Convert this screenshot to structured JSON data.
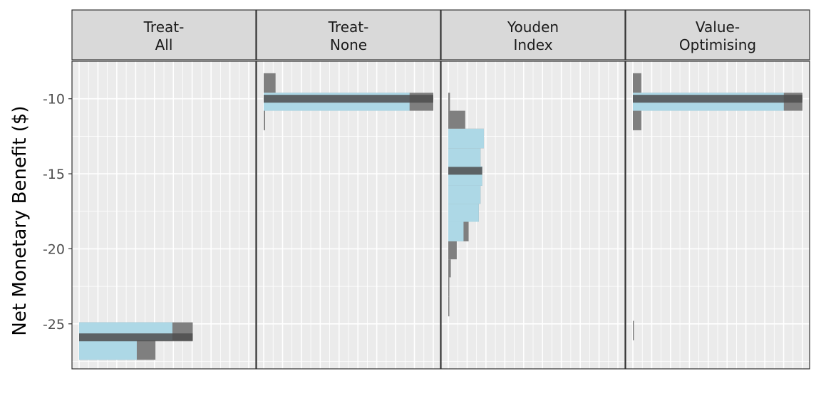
{
  "chart_data": {
    "type": "bar",
    "orientation": "horizontal",
    "ylabel": "Net Monetary Benefit ($)",
    "xlabel": "",
    "ylim": [
      -28,
      -7.5
    ],
    "xlim": [
      0,
      1
    ],
    "y_ticks": [
      -10,
      -15,
      -20,
      -25
    ],
    "y_tick_labels": [
      "-10",
      "-15",
      "-20",
      "-25"
    ],
    "grid": true,
    "legend": "none",
    "colors": {
      "panel_bg": "#ebebeb",
      "grid": "#ffffff",
      "strip_bg": "#d9d9d9",
      "strip_border": "#333333",
      "histogram": "#7f7f7f",
      "interval": "#add8e6",
      "median": "#4d4d4d",
      "tick_label": "#4d4d4d"
    },
    "panels": [
      {
        "strip": [
          "Treat-",
          "All"
        ],
        "hist": [
          {
            "y0": -24.9,
            "y1": -26.1,
            "value": 0.67
          },
          {
            "y0": -26.1,
            "y1": -27.4,
            "value": 0.45
          }
        ],
        "interval": [
          {
            "y0": -24.9,
            "y1": -26.1,
            "value": 0.55
          },
          {
            "y0": -26.1,
            "y1": -27.4,
            "value": 0.34
          }
        ],
        "median": {
          "y": -25.9,
          "value": 0.67
        }
      },
      {
        "strip": [
          "Treat-",
          "None"
        ],
        "hist": [
          {
            "y0": -8.3,
            "y1": -9.6,
            "value": 0.07
          },
          {
            "y0": -9.6,
            "y1": -10.8,
            "value": 1.0
          },
          {
            "y0": -10.8,
            "y1": -12.1,
            "value": 0.008
          }
        ],
        "interval": [
          {
            "y0": -9.6,
            "y1": -10.8,
            "value": 0.86
          }
        ],
        "median": {
          "y": -10.0,
          "value": 1.0
        }
      },
      {
        "strip": [
          "Youden",
          "Index"
        ],
        "hist": [
          {
            "y0": -9.6,
            "y1": -10.8,
            "value": 0.01
          },
          {
            "y0": -10.8,
            "y1": -12.0,
            "value": 0.1
          },
          {
            "y0": -12.0,
            "y1": -13.3,
            "value": 0.21
          },
          {
            "y0": -13.3,
            "y1": -14.5,
            "value": 0.19
          },
          {
            "y0": -14.5,
            "y1": -15.8,
            "value": 0.2
          },
          {
            "y0": -15.8,
            "y1": -17.0,
            "value": 0.19
          },
          {
            "y0": -17.0,
            "y1": -18.2,
            "value": 0.18
          },
          {
            "y0": -18.2,
            "y1": -19.5,
            "value": 0.12
          },
          {
            "y0": -19.5,
            "y1": -20.7,
            "value": 0.05
          },
          {
            "y0": -20.7,
            "y1": -21.9,
            "value": 0.015
          },
          {
            "y0": -21.9,
            "y1": -23.2,
            "value": 0.006
          },
          {
            "y0": -23.2,
            "y1": -24.5,
            "value": 0.003
          }
        ],
        "interval": [
          {
            "y0": -12.0,
            "y1": -13.3,
            "value": 0.21
          },
          {
            "y0": -13.3,
            "y1": -14.5,
            "value": 0.19
          },
          {
            "y0": -14.5,
            "y1": -15.8,
            "value": 0.2
          },
          {
            "y0": -15.8,
            "y1": -17.0,
            "value": 0.19
          },
          {
            "y0": -17.0,
            "y1": -18.2,
            "value": 0.18
          },
          {
            "y0": -18.2,
            "y1": -19.5,
            "value": 0.09
          }
        ],
        "median": {
          "y": -14.8,
          "value": 0.2
        }
      },
      {
        "strip": [
          "Value-",
          "Optimising"
        ],
        "hist": [
          {
            "y0": -8.3,
            "y1": -9.6,
            "value": 0.05
          },
          {
            "y0": -9.6,
            "y1": -10.8,
            "value": 1.0
          },
          {
            "y0": -10.8,
            "y1": -12.1,
            "value": 0.05
          },
          {
            "y0": -24.8,
            "y1": -26.1,
            "value": 0.005
          }
        ],
        "interval": [
          {
            "y0": -9.6,
            "y1": -10.8,
            "value": 0.89
          }
        ],
        "median": {
          "y": -10.0,
          "value": 1.0
        }
      }
    ]
  }
}
